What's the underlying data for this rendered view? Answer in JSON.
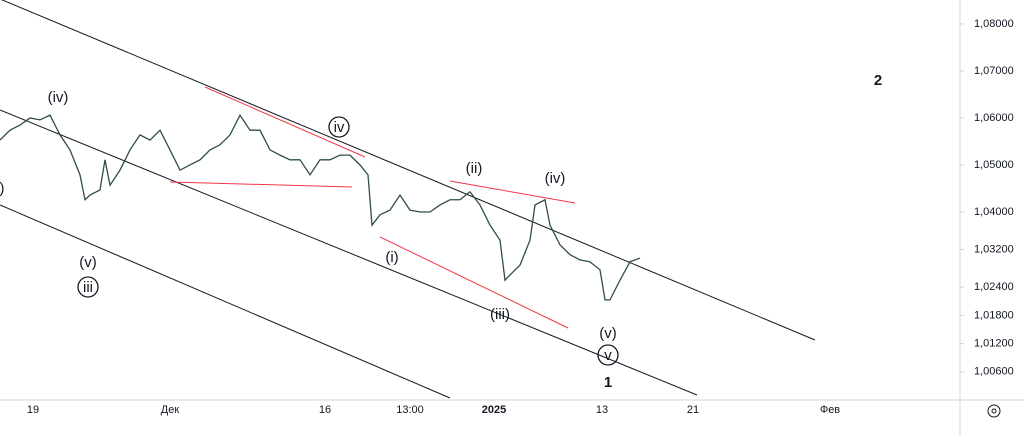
{
  "chart_data": {
    "type": "line",
    "color": "#2f4f3f",
    "x": [
      0,
      2.5,
      5,
      7.5,
      10,
      12.5,
      15,
      17.5,
      20,
      21.25,
      22.5,
      25,
      26.25,
      27.5,
      30,
      32.5,
      35,
      37.5,
      40,
      42.5,
      45,
      47.5,
      50,
      52.5,
      55,
      57.5,
      60,
      62.5,
      65,
      67.5,
      70,
      72.5,
      75,
      77.5,
      80,
      82.5,
      85,
      87.5,
      90,
      92,
      93,
      95,
      97.5,
      100,
      102.5,
      105,
      107.5,
      110,
      112.5,
      115,
      117.5,
      120,
      122.5,
      125,
      126.25,
      127.5,
      130,
      132.5,
      133.75,
      136.25,
      137.5,
      140,
      142.5,
      145,
      147.5,
      150,
      151.25,
      152.5,
      155,
      157.5,
      160
    ],
    "values": [
      1.0553,
      1.0574,
      1.0585,
      1.06,
      1.0596,
      1.0606,
      1.0564,
      1.0532,
      1.0479,
      1.0426,
      1.0436,
      1.0447,
      1.0511,
      1.0457,
      1.0489,
      1.0532,
      1.0564,
      1.0553,
      1.0574,
      1.0532,
      1.0489,
      1.05,
      1.0511,
      1.0532,
      1.0543,
      1.0564,
      1.0606,
      1.0574,
      1.0574,
      1.0532,
      1.0521,
      1.0511,
      1.0511,
      1.0479,
      1.0511,
      1.0511,
      1.0521,
      1.0521,
      1.05,
      1.0479,
      1.0372,
      1.0394,
      1.0404,
      1.0436,
      1.0404,
      1.04,
      1.04,
      1.0415,
      1.0426,
      1.0426,
      1.0443,
      1.0415,
      1.0372,
      1.034,
      1.0255,
      1.0266,
      1.0287,
      1.034,
      1.0415,
      1.0426,
      1.0372,
      1.033,
      1.0309,
      1.0298,
      1.0294,
      1.0277,
      1.0213,
      1.0213,
      1.0255,
      1.0294,
      1.0302
    ],
    "xlim": [
      0,
      240
    ],
    "xticks": [
      {
        "value": 8.25,
        "label": "19"
      },
      {
        "value": 42.5,
        "label": "Дек"
      },
      {
        "value": 81.25,
        "label": "16"
      },
      {
        "value": 102.5,
        "label": "13:00"
      },
      {
        "value": 123.5,
        "label": "2025"
      },
      {
        "value": 150.5,
        "label": "13"
      },
      {
        "value": 173.25,
        "label": "21"
      },
      {
        "value": 207.5,
        "label": "Фев"
      }
    ],
    "ylim": [
      1.0,
      1.0851
    ],
    "yticks": [
      {
        "value": 1.08,
        "label": "1,08000"
      },
      {
        "value": 1.07,
        "label": "1,07000"
      },
      {
        "value": 1.06,
        "label": "1,06000"
      },
      {
        "value": 1.05,
        "label": "1,05000"
      },
      {
        "value": 1.04,
        "label": "1,04000"
      },
      {
        "value": 1.032,
        "label": "1,03200"
      },
      {
        "value": 1.024,
        "label": "1,02400"
      },
      {
        "value": 1.018,
        "label": "1,01800"
      },
      {
        "value": 1.012,
        "label": "1,01200"
      },
      {
        "value": 1.006,
        "label": "1,00600"
      }
    ],
    "annotations": [
      ")",
      "(iv)",
      "(v)",
      "iii",
      "iv",
      "(i)",
      "(ii)",
      "(iii)",
      "(iv)",
      "(v)",
      "v",
      "1",
      "2"
    ]
  }
}
